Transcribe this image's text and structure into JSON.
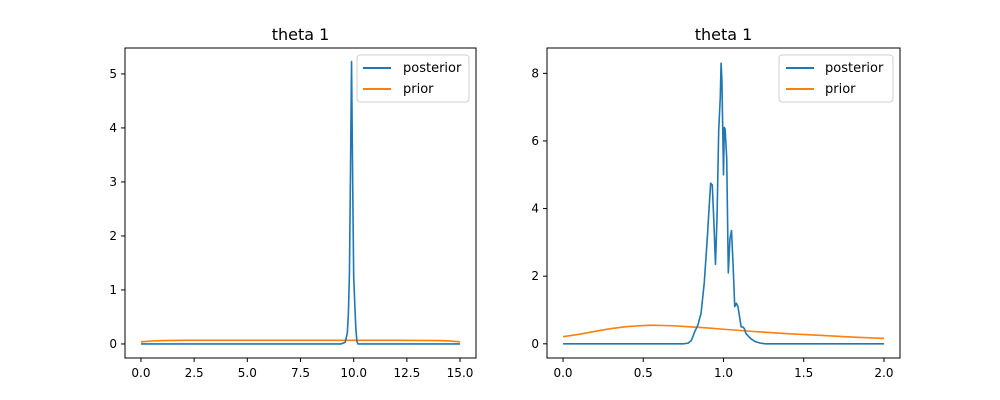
{
  "chart_data": [
    {
      "type": "line",
      "title": "theta 1",
      "xlabel": "",
      "ylabel": "",
      "xlim": [
        -0.75,
        15.75
      ],
      "ylim": [
        -0.26,
        5.48
      ],
      "xticks": [
        0.0,
        2.5,
        5.0,
        7.5,
        10.0,
        12.5,
        15.0
      ],
      "xtick_labels": [
        "0.0",
        "2.5",
        "5.0",
        "7.5",
        "10.0",
        "12.5",
        "15.0"
      ],
      "yticks": [
        0,
        1,
        2,
        3,
        4,
        5
      ],
      "ytick_labels": [
        "0",
        "1",
        "2",
        "3",
        "4",
        "5"
      ],
      "grid": false,
      "legend": "top-right",
      "series": [
        {
          "name": "posterior",
          "color": "#1f77b4",
          "x": [
            0,
            9.4,
            9.6,
            9.7,
            9.75,
            9.8,
            9.85,
            9.9,
            9.95,
            10.0,
            10.05,
            10.1,
            10.15,
            10.2,
            10.3,
            15
          ],
          "y": [
            0,
            0,
            0.03,
            0.2,
            0.55,
            1.3,
            3.2,
            5.23,
            3.1,
            1.25,
            0.75,
            0.3,
            0.05,
            0,
            0,
            0
          ]
        },
        {
          "name": "prior",
          "color": "#ff7f0e",
          "x": [
            0,
            0.5,
            1,
            1.5,
            2,
            3,
            5,
            7.5,
            10,
            12,
            13,
            14,
            14.5,
            15
          ],
          "y": [
            0.04,
            0.055,
            0.062,
            0.066,
            0.067,
            0.067,
            0.067,
            0.067,
            0.067,
            0.067,
            0.066,
            0.063,
            0.056,
            0.04
          ]
        }
      ]
    },
    {
      "type": "line",
      "title": "theta 1",
      "xlabel": "",
      "ylabel": "",
      "xlim": [
        -0.1,
        2.1
      ],
      "ylim": [
        -0.42,
        8.75
      ],
      "xticks": [
        0.0,
        0.5,
        1.0,
        1.5,
        2.0
      ],
      "xtick_labels": [
        "0.0",
        "0.5",
        "1.0",
        "1.5",
        "2.0"
      ],
      "yticks": [
        0,
        2,
        4,
        6,
        8
      ],
      "ytick_labels": [
        "0",
        "2",
        "4",
        "6",
        "8"
      ],
      "grid": false,
      "legend": "top-right",
      "series": [
        {
          "name": "posterior",
          "color": "#1f77b4",
          "x": [
            0,
            0.75,
            0.78,
            0.8,
            0.82,
            0.84,
            0.86,
            0.88,
            0.9,
            0.91,
            0.92,
            0.93,
            0.94,
            0.95,
            0.96,
            0.97,
            0.98,
            0.985,
            0.99,
            1.0,
            1.005,
            1.01,
            1.02,
            1.03,
            1.04,
            1.05,
            1.06,
            1.07,
            1.08,
            1.09,
            1.1,
            1.11,
            1.12,
            1.13,
            1.14,
            1.15,
            1.17,
            1.2,
            1.23,
            1.26,
            1.3,
            1.5,
            2.0
          ],
          "y": [
            0,
            0,
            0.02,
            0.1,
            0.35,
            0.55,
            0.9,
            1.8,
            3.2,
            4.0,
            4.75,
            4.7,
            3.6,
            2.35,
            3.8,
            6.3,
            7.3,
            8.3,
            7.8,
            5.0,
            6.4,
            6.35,
            5.5,
            2.1,
            3.1,
            3.35,
            2.3,
            1.1,
            1.2,
            1.1,
            0.8,
            0.5,
            0.5,
            0.45,
            0.3,
            0.25,
            0.15,
            0.06,
            0.02,
            0,
            0,
            0,
            0
          ]
        },
        {
          "name": "prior",
          "color": "#ff7f0e",
          "x": [
            0,
            0.1,
            0.2,
            0.3,
            0.4,
            0.5,
            0.55,
            0.6,
            0.7,
            0.8,
            0.9,
            1.0,
            1.2,
            1.4,
            1.6,
            1.8,
            2.0
          ],
          "y": [
            0.21,
            0.28,
            0.37,
            0.45,
            0.51,
            0.54,
            0.55,
            0.545,
            0.53,
            0.5,
            0.47,
            0.43,
            0.36,
            0.3,
            0.25,
            0.2,
            0.16
          ]
        }
      ]
    }
  ]
}
